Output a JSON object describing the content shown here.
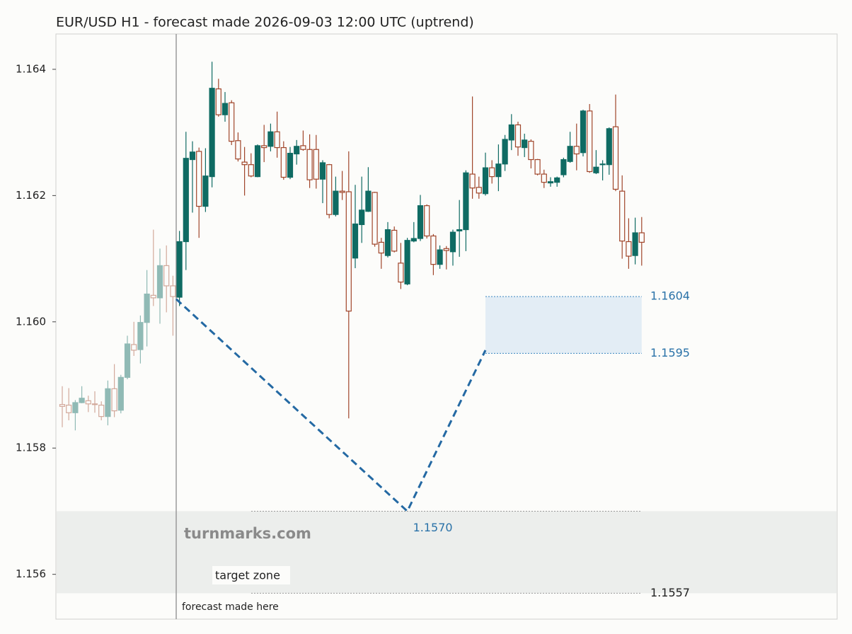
{
  "chart_data": {
    "type": "candlestick",
    "title": "EUR/USD H1 - forecast made 2026-09-03 12:00 UTC (uptrend)",
    "ylim": [
      1.15529,
      1.16456
    ],
    "yticks": [
      1.156,
      1.158,
      {
        "value": 1.16,
        "label": "1.160"
      },
      1.162,
      1.164
    ],
    "up_color": "#0f6b63",
    "down_color": "#a0452a",
    "history": {
      "open": [
        1.15869,
        1.15868,
        1.15856,
        1.15872,
        1.15875,
        1.1587,
        1.15868,
        1.1585,
        1.15894,
        1.1586,
        1.15912,
        1.15964,
        1.15956,
        1.15999,
        1.16042,
        1.16038,
        1.16089,
        1.16057
      ],
      "high": [
        1.15898,
        1.15895,
        1.15876,
        1.15898,
        1.15883,
        1.1589,
        1.15874,
        1.15907,
        1.15933,
        1.15916,
        1.15978,
        1.16,
        1.1601,
        1.16082,
        1.16146,
        1.16116,
        1.16121,
        1.16073
      ],
      "low": [
        1.15833,
        1.15844,
        1.15828,
        1.15871,
        1.15857,
        1.15856,
        1.15844,
        1.15836,
        1.15849,
        1.15855,
        1.15909,
        1.15946,
        1.15934,
        1.15961,
        1.16025,
        1.15997,
        1.16015,
        1.15978
      ],
      "close": [
        1.15866,
        1.15856,
        1.15872,
        1.15879,
        1.1587,
        1.15869,
        1.1585,
        1.15894,
        1.15859,
        1.15912,
        1.15965,
        1.15955,
        1.15999,
        1.16044,
        1.16038,
        1.16089,
        1.16057,
        1.1604
      ]
    },
    "candles": {
      "open": [
        1.16039,
        1.16127,
        1.16257,
        1.1627,
        1.16183,
        1.1623,
        1.16369,
        1.16328,
        1.16347,
        1.16287,
        1.16253,
        1.16249,
        1.1623,
        1.16279,
        1.16278,
        1.16301,
        1.16276,
        1.16229,
        1.16266,
        1.16279,
        1.16273,
        1.16273,
        1.16226,
        1.16249,
        1.1617,
        1.16207,
        1.16206,
        1.16101,
        1.16154,
        1.16175,
        1.16205,
        1.16126,
        1.16105,
        1.16145,
        1.16093,
        1.1606,
        1.16128,
        1.16132,
        1.16184,
        1.16136,
        1.16091,
        1.16116,
        1.16111,
        1.16144,
        1.16146,
        1.16234,
        1.16213,
        1.16203,
        1.16244,
        1.1623,
        1.1625,
        1.16288,
        1.16312,
        1.16276,
        1.16286,
        1.16257,
        1.16234,
        1.1622,
        1.16221,
        1.16233,
        1.16254,
        1.16278,
        1.16268,
        1.16334,
        1.16236,
        1.16249,
        1.16249,
        1.16309,
        1.16207,
        1.16127,
        1.16105,
        1.16141
      ],
      "high": [
        1.16144,
        1.16301,
        1.16286,
        1.16276,
        1.16275,
        1.16412,
        1.16385,
        1.16364,
        1.16351,
        1.163,
        1.16277,
        1.16267,
        1.16281,
        1.16312,
        1.16314,
        1.16333,
        1.16286,
        1.16277,
        1.16288,
        1.16303,
        1.16297,
        1.16296,
        1.16256,
        1.1625,
        1.1623,
        1.16239,
        1.1627,
        1.16217,
        1.1623,
        1.16245,
        1.16206,
        1.16133,
        1.16158,
        1.16151,
        1.16125,
        1.16133,
        1.16158,
        1.16201,
        1.16186,
        1.16139,
        1.16121,
        1.1612,
        1.16146,
        1.16193,
        1.1624,
        1.16357,
        1.1623,
        1.16268,
        1.16256,
        1.16281,
        1.16296,
        1.16329,
        1.16317,
        1.16298,
        1.16289,
        1.16258,
        1.16241,
        1.16229,
        1.1623,
        1.1626,
        1.16301,
        1.16314,
        1.16336,
        1.16345,
        1.16272,
        1.16256,
        1.16308,
        1.1636,
        1.16232,
        1.16164,
        1.16165,
        1.16166
      ],
      "low": [
        1.16025,
        1.16082,
        1.16173,
        1.16133,
        1.16174,
        1.16213,
        1.16325,
        1.16317,
        1.1628,
        1.16254,
        1.162,
        1.16229,
        1.16229,
        1.16253,
        1.1627,
        1.1626,
        1.16225,
        1.16226,
        1.16249,
        1.16271,
        1.16212,
        1.16211,
        1.16188,
        1.16164,
        1.16167,
        1.16193,
        1.15847,
        1.16085,
        1.16125,
        1.16174,
        1.16119,
        1.16084,
        1.16102,
        1.1611,
        1.16052,
        1.16058,
        1.16126,
        1.16128,
        1.16132,
        1.16074,
        1.16084,
        1.16083,
        1.16089,
        1.16103,
        1.16112,
        1.16195,
        1.16195,
        1.162,
        1.16219,
        1.16207,
        1.16239,
        1.16272,
        1.16263,
        1.16261,
        1.16243,
        1.16232,
        1.16212,
        1.16214,
        1.16214,
        1.16229,
        1.16252,
        1.1624,
        1.16262,
        1.16236,
        1.16234,
        1.16224,
        1.16233,
        1.16207,
        1.161,
        1.16084,
        1.16091,
        1.16089
      ],
      "close": [
        1.16127,
        1.16259,
        1.16269,
        1.16183,
        1.16231,
        1.1637,
        1.16328,
        1.16346,
        1.16286,
        1.16258,
        1.16249,
        1.16231,
        1.16279,
        1.16276,
        1.16301,
        1.16276,
        1.16229,
        1.16267,
        1.16278,
        1.16273,
        1.16225,
        1.16226,
        1.16252,
        1.1617,
        1.16207,
        1.16205,
        1.16017,
        1.16155,
        1.16177,
        1.16207,
        1.16123,
        1.16109,
        1.16146,
        1.16112,
        1.16063,
        1.16129,
        1.16132,
        1.16184,
        1.16136,
        1.16091,
        1.16114,
        1.16113,
        1.16142,
        1.16146,
        1.16236,
        1.16212,
        1.16204,
        1.16244,
        1.1623,
        1.1625,
        1.16289,
        1.16312,
        1.16277,
        1.16288,
        1.16257,
        1.16234,
        1.16221,
        1.16222,
        1.16228,
        1.16257,
        1.16278,
        1.16266,
        1.16334,
        1.16238,
        1.16245,
        1.1625,
        1.16306,
        1.1621,
        1.16128,
        1.16104,
        1.16141,
        1.16126
      ]
    },
    "forecast": {
      "x": [
        17.5,
        53,
        65
      ],
      "values": [
        1.16036,
        1.157,
        1.15955
      ],
      "value_labels": [
        null,
        "1.1570",
        null
      ],
      "color": "#2469a3",
      "annotation": "forecast made here"
    },
    "expected_zone": {
      "values": [
        1.1604,
        1.1595
      ],
      "value_labels": [
        "1.1604",
        "1.1595"
      ],
      "color": "#e3edf5"
    },
    "target_zone": {
      "label": "target zone",
      "values": [
        1.157,
        1.1557
      ],
      "low_label": "1.1557",
      "color": "#eceeec"
    },
    "watermark": "turnmarks.com"
  }
}
